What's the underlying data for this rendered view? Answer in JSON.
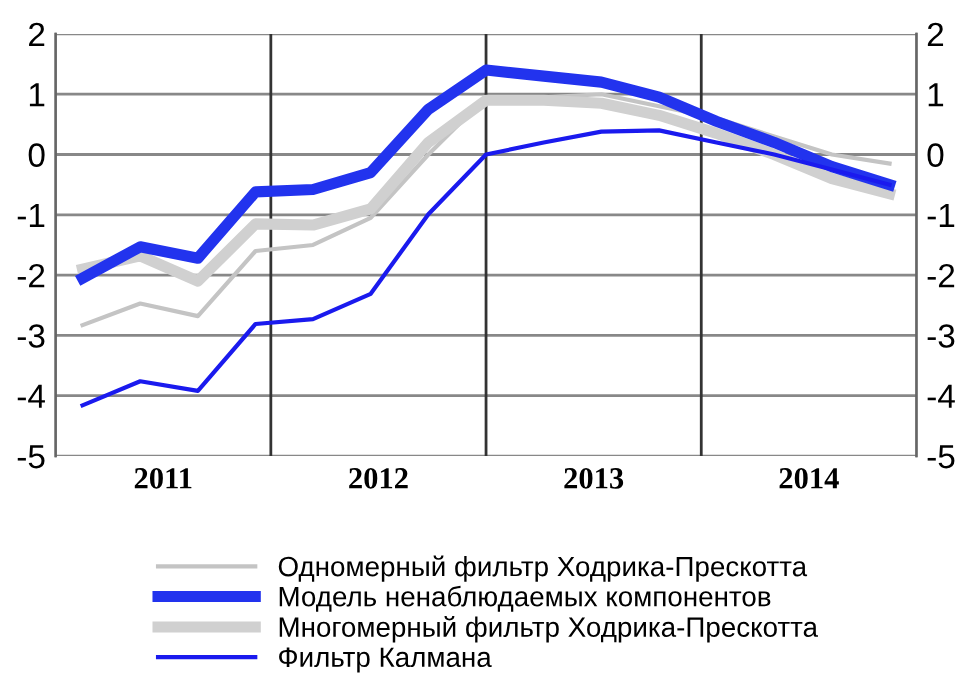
{
  "chart_data": {
    "type": "line",
    "x": [
      2011.125,
      2011.393,
      2011.661,
      2011.929,
      2012.196,
      2012.464,
      2012.732,
      2013.0,
      2013.268,
      2013.536,
      2013.804,
      2014.071,
      2014.339,
      2014.607,
      2014.875
    ],
    "series": [
      {
        "name": "Одномерный фильтр Ходрика-Прескотта",
        "color": "#c4c4c4",
        "values": [
          -2.83,
          -2.47,
          -2.68,
          -1.6,
          -1.5,
          -1.05,
          0.0,
          0.95,
          0.95,
          1.0,
          0.8,
          0.6,
          0.3,
          0.0,
          -0.15
        ]
      },
      {
        "name": "Модель ненаблюдаемых компонентов",
        "color": "#2233ee",
        "values": [
          -2.05,
          -1.53,
          -1.72,
          -0.62,
          -0.58,
          -0.3,
          0.75,
          1.4,
          1.3,
          1.2,
          0.95,
          0.55,
          0.2,
          -0.2,
          -0.5
        ]
      },
      {
        "name": "Многомерный фильтр Ходрика-Прескотта",
        "color": "#d0d0d0",
        "values": [
          -1.9,
          -1.68,
          -2.1,
          -1.15,
          -1.17,
          -0.9,
          0.2,
          0.9,
          0.9,
          0.85,
          0.65,
          0.35,
          0.0,
          -0.4,
          -0.65
        ]
      },
      {
        "name": "Фильтр Калмана",
        "color": "#1a1aee",
        "values": [
          -4.16,
          -3.76,
          -3.92,
          -2.81,
          -2.73,
          -2.31,
          -0.99,
          0.0,
          0.2,
          0.38,
          0.4,
          0.2,
          0.0,
          -0.25,
          -0.5
        ]
      }
    ],
    "xlim": [
      2011,
      2015
    ],
    "xticks": [
      {
        "value": 2011.5,
        "label": "2011"
      },
      {
        "value": 2012.5,
        "label": "2012"
      },
      {
        "value": 2013.5,
        "label": "2013"
      },
      {
        "value": 2014.5,
        "label": "2014"
      }
    ],
    "ylim": [
      -5,
      2
    ],
    "yticks": [
      -5,
      -4,
      -3,
      -2,
      -1,
      0,
      1,
      2
    ],
    "y2lim": [
      -5,
      2
    ],
    "y2ticks": [
      -5,
      -4,
      -3,
      -2,
      -1,
      0,
      1,
      2
    ],
    "ref_lines": [
      {
        "axis": "x",
        "value": 2012,
        "label": null,
        "color": "#333333"
      },
      {
        "axis": "x",
        "value": 2013,
        "label": null,
        "color": "#333333"
      },
      {
        "axis": "x",
        "value": 2014,
        "label": null,
        "color": "#333333"
      }
    ],
    "grid": "y",
    "legend": "bottom",
    "marker": "none",
    "line_style": "solid"
  }
}
